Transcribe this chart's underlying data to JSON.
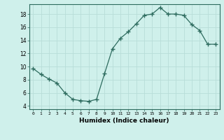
{
  "x": [
    0,
    1,
    2,
    3,
    4,
    5,
    6,
    7,
    8,
    9,
    10,
    11,
    12,
    13,
    14,
    15,
    16,
    17,
    18,
    19,
    20,
    21,
    22,
    23
  ],
  "y": [
    9.7,
    8.8,
    8.1,
    7.5,
    6.0,
    5.0,
    4.8,
    4.7,
    5.0,
    8.9,
    12.7,
    14.3,
    15.3,
    16.5,
    17.8,
    18.0,
    19.0,
    18.0,
    18.0,
    17.8,
    16.4,
    15.5,
    13.4,
    13.4
  ],
  "xlabel": "Humidex (Indice chaleur)",
  "ylim": [
    3.5,
    19.5
  ],
  "xlim": [
    -0.5,
    23.5
  ],
  "yticks": [
    4,
    6,
    8,
    10,
    12,
    14,
    16,
    18
  ],
  "xticks": [
    0,
    1,
    2,
    3,
    4,
    5,
    6,
    7,
    8,
    9,
    10,
    11,
    12,
    13,
    14,
    15,
    16,
    17,
    18,
    19,
    20,
    21,
    22,
    23
  ],
  "line_color": "#2d6b5e",
  "marker": "+",
  "bg_color": "#cff0eb",
  "grid_color": "#b8ddd8",
  "spine_color": "#2d6b5e"
}
